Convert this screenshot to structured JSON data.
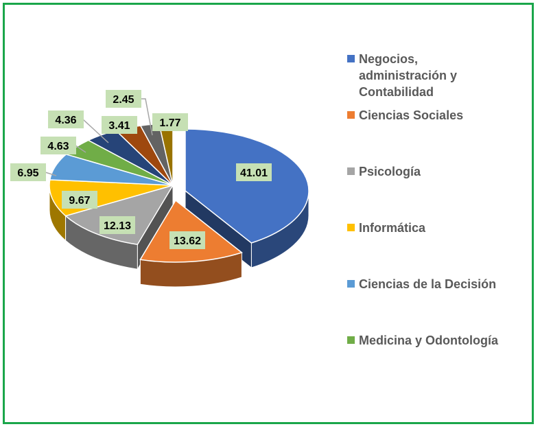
{
  "chart_data": {
    "type": "pie",
    "title": "",
    "slices": [
      {
        "label": "Negocios, administración y Contabilidad",
        "value": 41.01,
        "display": "41.01",
        "color": "#4472c4"
      },
      {
        "label": "Ciencias Sociales",
        "value": 13.62,
        "display": "13.62",
        "color": "#ed7d31"
      },
      {
        "label": "Psicología",
        "value": 12.13,
        "display": "12.13",
        "color": "#a5a5a5"
      },
      {
        "label": "Informática",
        "value": 9.67,
        "display": "9.67",
        "color": "#ffc000"
      },
      {
        "label": "Ciencias de la Decisión",
        "value": 6.95,
        "display": "6.95",
        "color": "#5b9bd5"
      },
      {
        "label": "Medicina y Odontología",
        "value": 4.63,
        "display": "4.63",
        "color": "#70ad47"
      },
      {
        "label": "",
        "value": 4.36,
        "display": "4.36",
        "color": "#264478"
      },
      {
        "label": "",
        "value": 3.41,
        "display": "3.41",
        "color": "#9e480e"
      },
      {
        "label": "",
        "value": 2.45,
        "display": "2.45",
        "color": "#636363"
      },
      {
        "label": "",
        "value": 1.77,
        "display": "1.77",
        "color": "#997300"
      }
    ],
    "legend_position": "right",
    "legend": [
      {
        "label": "Negocios,\nadministración y\nContabilidad",
        "color": "#4472c4"
      },
      {
        "label": "Ciencias Sociales",
        "color": "#ed7d31"
      },
      {
        "label": "Psicología",
        "color": "#a5a5a5"
      },
      {
        "label": "Informática",
        "color": "#ffc000"
      },
      {
        "label": "Ciencias de la Decisión",
        "color": "#5b9bd5"
      },
      {
        "label": "Medicina y Odontología",
        "color": "#70ad47"
      }
    ],
    "label_box_color": "#c6e0b4",
    "frame_color": "#1aa64a"
  }
}
